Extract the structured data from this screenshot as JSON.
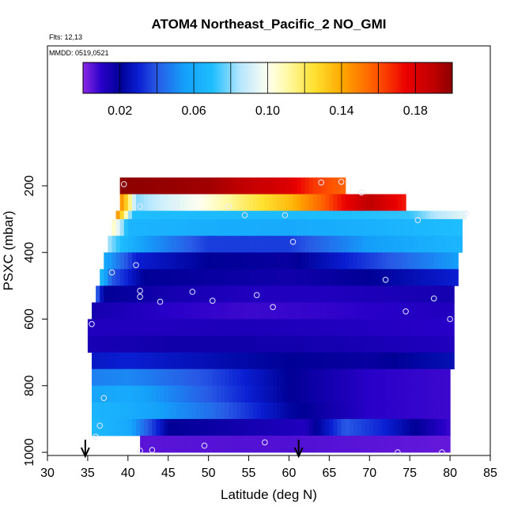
{
  "chart_data": {
    "type": "heatmap",
    "title": "ATOM4 Northeast_Pacific_2 NO_GMI",
    "annotations": [
      "Flts: 12,13",
      "MMDD: 0519,0521"
    ],
    "xlabel": "Latitude (deg N)",
    "ylabel": "PSXC (mbar)",
    "xlim": [
      30,
      85
    ],
    "ylim": [
      1000,
      0
    ],
    "x_ticks": [
      "30",
      "35",
      "40",
      "45",
      "50",
      "55",
      "60",
      "65",
      "70",
      "75",
      "80",
      "85"
    ],
    "y_ticks": [
      "200",
      "400",
      "600",
      "800",
      "1000"
    ],
    "colorbar": {
      "min": 0.0,
      "max": 0.2,
      "tick_labels": [
        "0.02",
        "0.06",
        "0.10",
        "0.14",
        "0.18"
      ],
      "tick_values": [
        0.02,
        0.06,
        0.1,
        0.14,
        0.18
      ]
    },
    "bands": [
      {
        "pmin": 175,
        "pmax": 225,
        "lat0": 39.0,
        "lat1": 67.0,
        "stops": [
          [
            39,
            0.2
          ],
          [
            50,
            0.196
          ],
          [
            60,
            0.18
          ],
          [
            63,
            0.165
          ],
          [
            67,
            0.155
          ]
        ]
      },
      {
        "pmin": 225,
        "pmax": 275,
        "lat0": 39.0,
        "lat1": 74.5,
        "stops": [
          [
            39,
            0.15
          ],
          [
            40,
            0.125
          ],
          [
            41,
            0.08
          ],
          [
            44,
            0.09
          ],
          [
            49,
            0.1
          ],
          [
            55,
            0.12
          ],
          [
            60,
            0.135
          ],
          [
            64,
            0.155
          ],
          [
            67,
            0.175
          ],
          [
            70,
            0.19
          ],
          [
            74.5,
            0.17
          ]
        ]
      },
      {
        "pmin": 275,
        "pmax": 300,
        "lat0": 38.5,
        "lat1": 82.0,
        "stops": [
          [
            38.5,
            0.15
          ],
          [
            39.5,
            0.12
          ],
          [
            40.5,
            0.07
          ],
          [
            50,
            0.068
          ],
          [
            60,
            0.068
          ],
          [
            75,
            0.072
          ],
          [
            78,
            0.085
          ],
          [
            82,
            0.095
          ]
        ]
      },
      {
        "pmin": 300,
        "pmax": 350,
        "lat0": 38.0,
        "lat1": 81.5,
        "stops": [
          [
            38,
            0.11
          ],
          [
            39,
            0.09
          ],
          [
            40,
            0.065
          ],
          [
            50,
            0.062
          ],
          [
            60,
            0.06
          ],
          [
            70,
            0.063
          ],
          [
            81.5,
            0.07
          ]
        ]
      },
      {
        "pmin": 350,
        "pmax": 400,
        "lat0": 37.5,
        "lat1": 81.5,
        "stops": [
          [
            37.5,
            0.085
          ],
          [
            39,
            0.07
          ],
          [
            42,
            0.055
          ],
          [
            50,
            0.035
          ],
          [
            60,
            0.035
          ],
          [
            70,
            0.055
          ],
          [
            81.5,
            0.066
          ]
        ]
      },
      {
        "pmin": 400,
        "pmax": 450,
        "lat0": 37.0,
        "lat1": 81.0,
        "stops": [
          [
            37,
            0.06
          ],
          [
            41,
            0.03
          ],
          [
            50,
            0.02
          ],
          [
            60,
            0.018
          ],
          [
            70,
            0.035
          ],
          [
            81,
            0.055
          ]
        ]
      },
      {
        "pmin": 450,
        "pmax": 500,
        "lat0": 36.5,
        "lat1": 81.0,
        "stops": [
          [
            36.5,
            0.07
          ],
          [
            38,
            0.04
          ],
          [
            42,
            0.02
          ],
          [
            50,
            0.018
          ],
          [
            60,
            0.016
          ],
          [
            70,
            0.02
          ],
          [
            81,
            0.03
          ]
        ]
      },
      {
        "pmin": 500,
        "pmax": 550,
        "lat0": 36.0,
        "lat1": 80.5,
        "stops": [
          [
            36,
            0.045
          ],
          [
            37,
            0.02
          ],
          [
            45,
            0.015
          ],
          [
            55,
            0.012
          ],
          [
            65,
            0.012
          ],
          [
            80.5,
            0.015
          ]
        ]
      },
      {
        "pmin": 550,
        "pmax": 600,
        "lat0": 35.5,
        "lat1": 80.5,
        "stops": [
          [
            35.5,
            0.015
          ],
          [
            45,
            0.01
          ],
          [
            55,
            0.008
          ],
          [
            65,
            0.009
          ],
          [
            80.5,
            0.012
          ]
        ]
      },
      {
        "pmin": 600,
        "pmax": 650,
        "lat0": 35.0,
        "lat1": 80.5,
        "stops": [
          [
            35,
            0.012
          ],
          [
            45,
            0.012
          ],
          [
            55,
            0.013
          ],
          [
            65,
            0.012
          ],
          [
            80.5,
            0.01
          ]
        ]
      },
      {
        "pmin": 650,
        "pmax": 700,
        "lat0": 35.0,
        "lat1": 80.5,
        "stops": [
          [
            35,
            0.014
          ],
          [
            45,
            0.016
          ],
          [
            55,
            0.016
          ],
          [
            65,
            0.015
          ],
          [
            80.5,
            0.012
          ]
        ]
      },
      {
        "pmin": 700,
        "pmax": 750,
        "lat0": 35.5,
        "lat1": 80.5,
        "stops": [
          [
            35.5,
            0.028
          ],
          [
            40,
            0.03
          ],
          [
            50,
            0.025
          ],
          [
            60,
            0.02
          ],
          [
            70,
            0.018
          ],
          [
            80.5,
            0.025
          ]
        ]
      },
      {
        "pmin": 750,
        "pmax": 800,
        "lat0": 35.5,
        "lat1": 80.0,
        "stops": [
          [
            35.5,
            0.048
          ],
          [
            40,
            0.05
          ],
          [
            50,
            0.038
          ],
          [
            60,
            0.02
          ],
          [
            70,
            0.01
          ],
          [
            80,
            0.008
          ]
        ]
      },
      {
        "pmin": 800,
        "pmax": 850,
        "lat0": 35.5,
        "lat1": 80.0,
        "stops": [
          [
            35.5,
            0.058
          ],
          [
            40,
            0.06
          ],
          [
            50,
            0.04
          ],
          [
            60,
            0.02
          ],
          [
            70,
            0.01
          ],
          [
            80,
            0.008
          ]
        ]
      },
      {
        "pmin": 850,
        "pmax": 900,
        "lat0": 35.5,
        "lat1": 80.0,
        "stops": [
          [
            35.5,
            0.065
          ],
          [
            40,
            0.062
          ],
          [
            50,
            0.045
          ],
          [
            60,
            0.022
          ],
          [
            70,
            0.01
          ],
          [
            80,
            0.008
          ]
        ]
      },
      {
        "pmin": 900,
        "pmax": 950,
        "lat0": 35.5,
        "lat1": 80.0,
        "stops": [
          [
            35.5,
            0.068
          ],
          [
            40,
            0.06
          ],
          [
            45,
            0.02
          ],
          [
            55,
            0.015
          ],
          [
            62,
            0.012
          ],
          [
            67,
            0.04
          ],
          [
            72,
            0.03
          ],
          [
            80,
            0.008
          ]
        ]
      },
      {
        "pmin": 950,
        "pmax": 1000,
        "lat0": 41.5,
        "lat1": 80.0,
        "stops": [
          [
            41.5,
            0.005
          ],
          [
            60,
            0.006
          ],
          [
            80,
            0.004
          ]
        ]
      }
    ],
    "observations": [
      {
        "lat": 39.5,
        "p": 195
      },
      {
        "lat": 64.0,
        "p": 190
      },
      {
        "lat": 66.5,
        "p": 188
      },
      {
        "lat": 69.0,
        "p": 220
      },
      {
        "lat": 41.5,
        "p": 262
      },
      {
        "lat": 46.0,
        "p": 262
      },
      {
        "lat": 52.5,
        "p": 262
      },
      {
        "lat": 54.5,
        "p": 288
      },
      {
        "lat": 59.5,
        "p": 288
      },
      {
        "lat": 76.0,
        "p": 303
      },
      {
        "lat": 82.0,
        "p": 283
      },
      {
        "lat": 60.5,
        "p": 368
      },
      {
        "lat": 41.0,
        "p": 438
      },
      {
        "lat": 38.0,
        "p": 460
      },
      {
        "lat": 72.0,
        "p": 482
      },
      {
        "lat": 41.5,
        "p": 515
      },
      {
        "lat": 41.5,
        "p": 533
      },
      {
        "lat": 48.0,
        "p": 518
      },
      {
        "lat": 44.0,
        "p": 548
      },
      {
        "lat": 50.5,
        "p": 545
      },
      {
        "lat": 56.0,
        "p": 528
      },
      {
        "lat": 58.0,
        "p": 564
      },
      {
        "lat": 78.0,
        "p": 538
      },
      {
        "lat": 74.5,
        "p": 577
      },
      {
        "lat": 80.0,
        "p": 600
      },
      {
        "lat": 35.5,
        "p": 615
      },
      {
        "lat": 37.0,
        "p": 837
      },
      {
        "lat": 36.5,
        "p": 920
      },
      {
        "lat": 36.0,
        "p": 953
      },
      {
        "lat": 41.5,
        "p": 995
      },
      {
        "lat": 43.0,
        "p": 993
      },
      {
        "lat": 49.5,
        "p": 980
      },
      {
        "lat": 57.0,
        "p": 970
      },
      {
        "lat": 73.5,
        "p": 1000
      },
      {
        "lat": 79.0,
        "p": 1000
      }
    ],
    "arrows": [
      {
        "lat": 34.7
      },
      {
        "lat": 61.2
      }
    ]
  }
}
